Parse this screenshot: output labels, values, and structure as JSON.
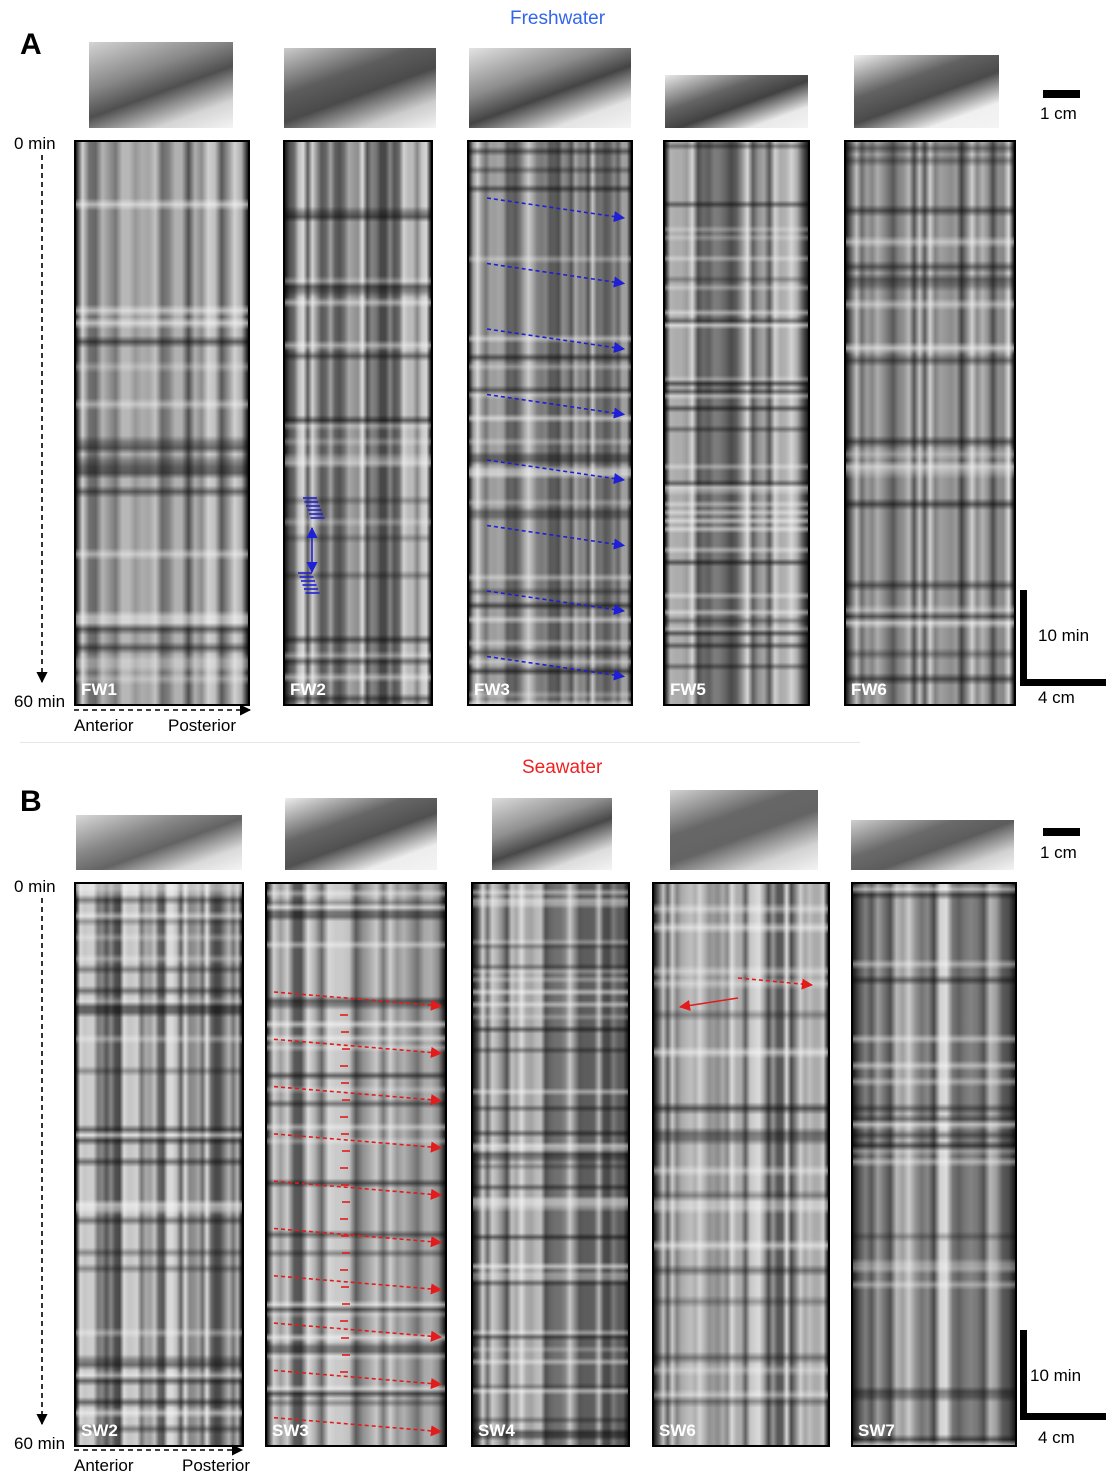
{
  "figure": {
    "panel_a": {
      "letter": "A",
      "condition": "Freshwater",
      "condition_color": "#3366ee",
      "time_start": "0 min",
      "time_end": "60 min",
      "axis_anterior": "Anterior",
      "axis_posterior": "Posterior",
      "scale_photo": "1 cm",
      "scale_time": "10 min",
      "scale_space": "4 cm",
      "samples": [
        "FW1",
        "FW2",
        "FW3",
        "FW5",
        "FW6"
      ]
    },
    "panel_b": {
      "letter": "B",
      "condition": "Seawater",
      "condition_color": "#ee2222",
      "time_start": "0 min",
      "time_end": "60 min",
      "axis_anterior": "Anterior",
      "axis_posterior": "Posterior",
      "scale_photo": "1 cm",
      "scale_time": "10 min",
      "scale_space": "4 cm",
      "samples": [
        "SW2",
        "SW3",
        "SW4",
        "SW6",
        "SW7"
      ]
    }
  }
}
